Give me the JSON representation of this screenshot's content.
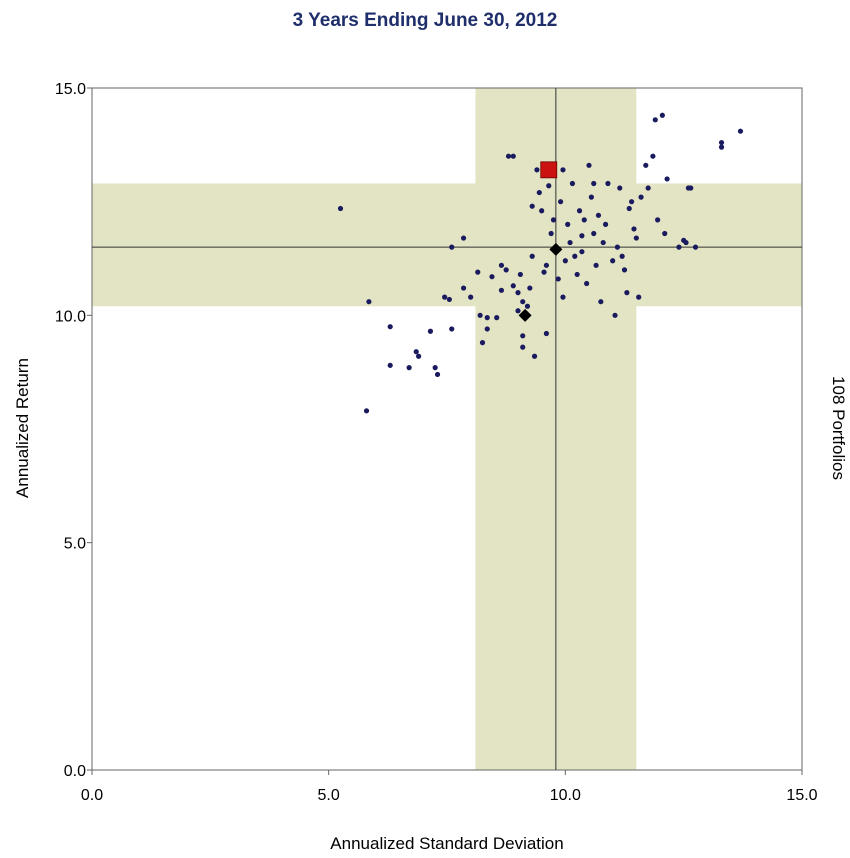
{
  "chart_data": {
    "type": "scatter",
    "title": "3 Years Ending June 30, 2012",
    "xlabel": "Annualized Standard Deviation",
    "ylabel": "Annualized Return",
    "right_label": "108 Portfolios",
    "xlim": [
      0,
      15
    ],
    "ylim": [
      0,
      15
    ],
    "xticks": [
      "0.0",
      "5.0",
      "10.0",
      "15.0"
    ],
    "yticks": [
      "0.0",
      "5.0",
      "10.0",
      "15.0"
    ],
    "grid": false,
    "bands": {
      "x_range": [
        8.1,
        11.5
      ],
      "y_range": [
        10.2,
        12.9
      ],
      "color": "#e3e4c4"
    },
    "reference_lines": {
      "x": 9.8,
      "y": 11.5
    },
    "colors": {
      "points": "#1a1a5e",
      "highlight": "#cc1111",
      "benchmark": "#000000"
    },
    "points": [
      [
        5.25,
        12.35
      ],
      [
        5.85,
        10.3
      ],
      [
        6.3,
        9.75
      ],
      [
        6.3,
        8.9
      ],
      [
        6.7,
        8.85
      ],
      [
        6.85,
        9.2
      ],
      [
        6.9,
        9.1
      ],
      [
        7.15,
        9.65
      ],
      [
        7.25,
        8.85
      ],
      [
        7.3,
        8.7
      ],
      [
        7.45,
        10.4
      ],
      [
        7.55,
        10.35
      ],
      [
        7.6,
        9.7
      ],
      [
        7.6,
        11.5
      ],
      [
        7.85,
        11.7
      ],
      [
        7.85,
        10.6
      ],
      [
        8.0,
        10.4
      ],
      [
        8.15,
        10.95
      ],
      [
        8.25,
        9.4
      ],
      [
        8.35,
        9.7
      ],
      [
        8.35,
        9.95
      ],
      [
        8.45,
        10.85
      ],
      [
        8.55,
        9.95
      ],
      [
        8.65,
        11.1
      ],
      [
        8.65,
        10.55
      ],
      [
        8.8,
        13.5
      ],
      [
        8.9,
        13.5
      ],
      [
        8.9,
        10.65
      ],
      [
        9.0,
        10.5
      ],
      [
        9.0,
        10.1
      ],
      [
        9.05,
        10.9
      ],
      [
        9.1,
        10.3
      ],
      [
        9.1,
        9.55
      ],
      [
        9.1,
        9.3
      ],
      [
        9.15,
        10.0
      ],
      [
        9.2,
        10.2
      ],
      [
        9.25,
        10.6
      ],
      [
        9.3,
        11.3
      ],
      [
        9.3,
        12.4
      ],
      [
        9.35,
        9.1
      ],
      [
        9.4,
        13.2
      ],
      [
        9.45,
        12.7
      ],
      [
        9.5,
        12.3
      ],
      [
        9.55,
        10.95
      ],
      [
        9.6,
        11.1
      ],
      [
        9.6,
        9.6
      ],
      [
        9.7,
        11.8
      ],
      [
        9.75,
        12.1
      ],
      [
        9.8,
        11.4
      ],
      [
        9.85,
        10.8
      ],
      [
        9.9,
        12.5
      ],
      [
        9.95,
        13.2
      ],
      [
        9.95,
        10.4
      ],
      [
        10.0,
        11.2
      ],
      [
        10.05,
        12.0
      ],
      [
        10.1,
        11.6
      ],
      [
        10.15,
        12.9
      ],
      [
        10.2,
        11.3
      ],
      [
        10.25,
        10.9
      ],
      [
        10.3,
        12.3
      ],
      [
        10.35,
        11.4
      ],
      [
        10.4,
        12.1
      ],
      [
        10.45,
        10.7
      ],
      [
        10.5,
        13.3
      ],
      [
        10.55,
        12.6
      ],
      [
        10.6,
        12.9
      ],
      [
        10.6,
        11.8
      ],
      [
        10.65,
        11.1
      ],
      [
        10.7,
        12.2
      ],
      [
        10.75,
        10.3
      ],
      [
        10.8,
        11.6
      ],
      [
        10.85,
        12.0
      ],
      [
        10.9,
        12.9
      ],
      [
        11.0,
        11.2
      ],
      [
        11.05,
        10.0
      ],
      [
        11.1,
        11.5
      ],
      [
        11.15,
        12.8
      ],
      [
        11.2,
        11.3
      ],
      [
        11.25,
        11.0
      ],
      [
        11.3,
        10.5
      ],
      [
        11.4,
        12.5
      ],
      [
        11.45,
        11.9
      ],
      [
        11.5,
        11.7
      ],
      [
        11.55,
        10.4
      ],
      [
        11.6,
        12.6
      ],
      [
        11.7,
        13.3
      ],
      [
        11.75,
        12.8
      ],
      [
        11.85,
        13.5
      ],
      [
        11.9,
        14.3
      ],
      [
        11.95,
        12.1
      ],
      [
        12.05,
        14.4
      ],
      [
        12.1,
        11.8
      ],
      [
        12.15,
        13.0
      ],
      [
        12.4,
        11.5
      ],
      [
        12.55,
        11.6
      ],
      [
        12.6,
        12.8
      ],
      [
        12.65,
        12.8
      ],
      [
        12.75,
        11.5
      ],
      [
        13.3,
        13.7
      ],
      [
        13.3,
        13.8
      ],
      [
        13.7,
        14.05
      ],
      [
        8.2,
        10.0
      ],
      [
        8.75,
        11.0
      ],
      [
        9.65,
        12.85
      ],
      [
        10.35,
        11.75
      ],
      [
        11.35,
        12.35
      ],
      [
        12.5,
        11.65
      ],
      [
        5.8,
        7.9
      ]
    ],
    "highlight_point": [
      9.65,
      13.2
    ],
    "benchmark_points": [
      [
        9.8,
        11.45
      ],
      [
        9.15,
        10.0
      ]
    ]
  }
}
